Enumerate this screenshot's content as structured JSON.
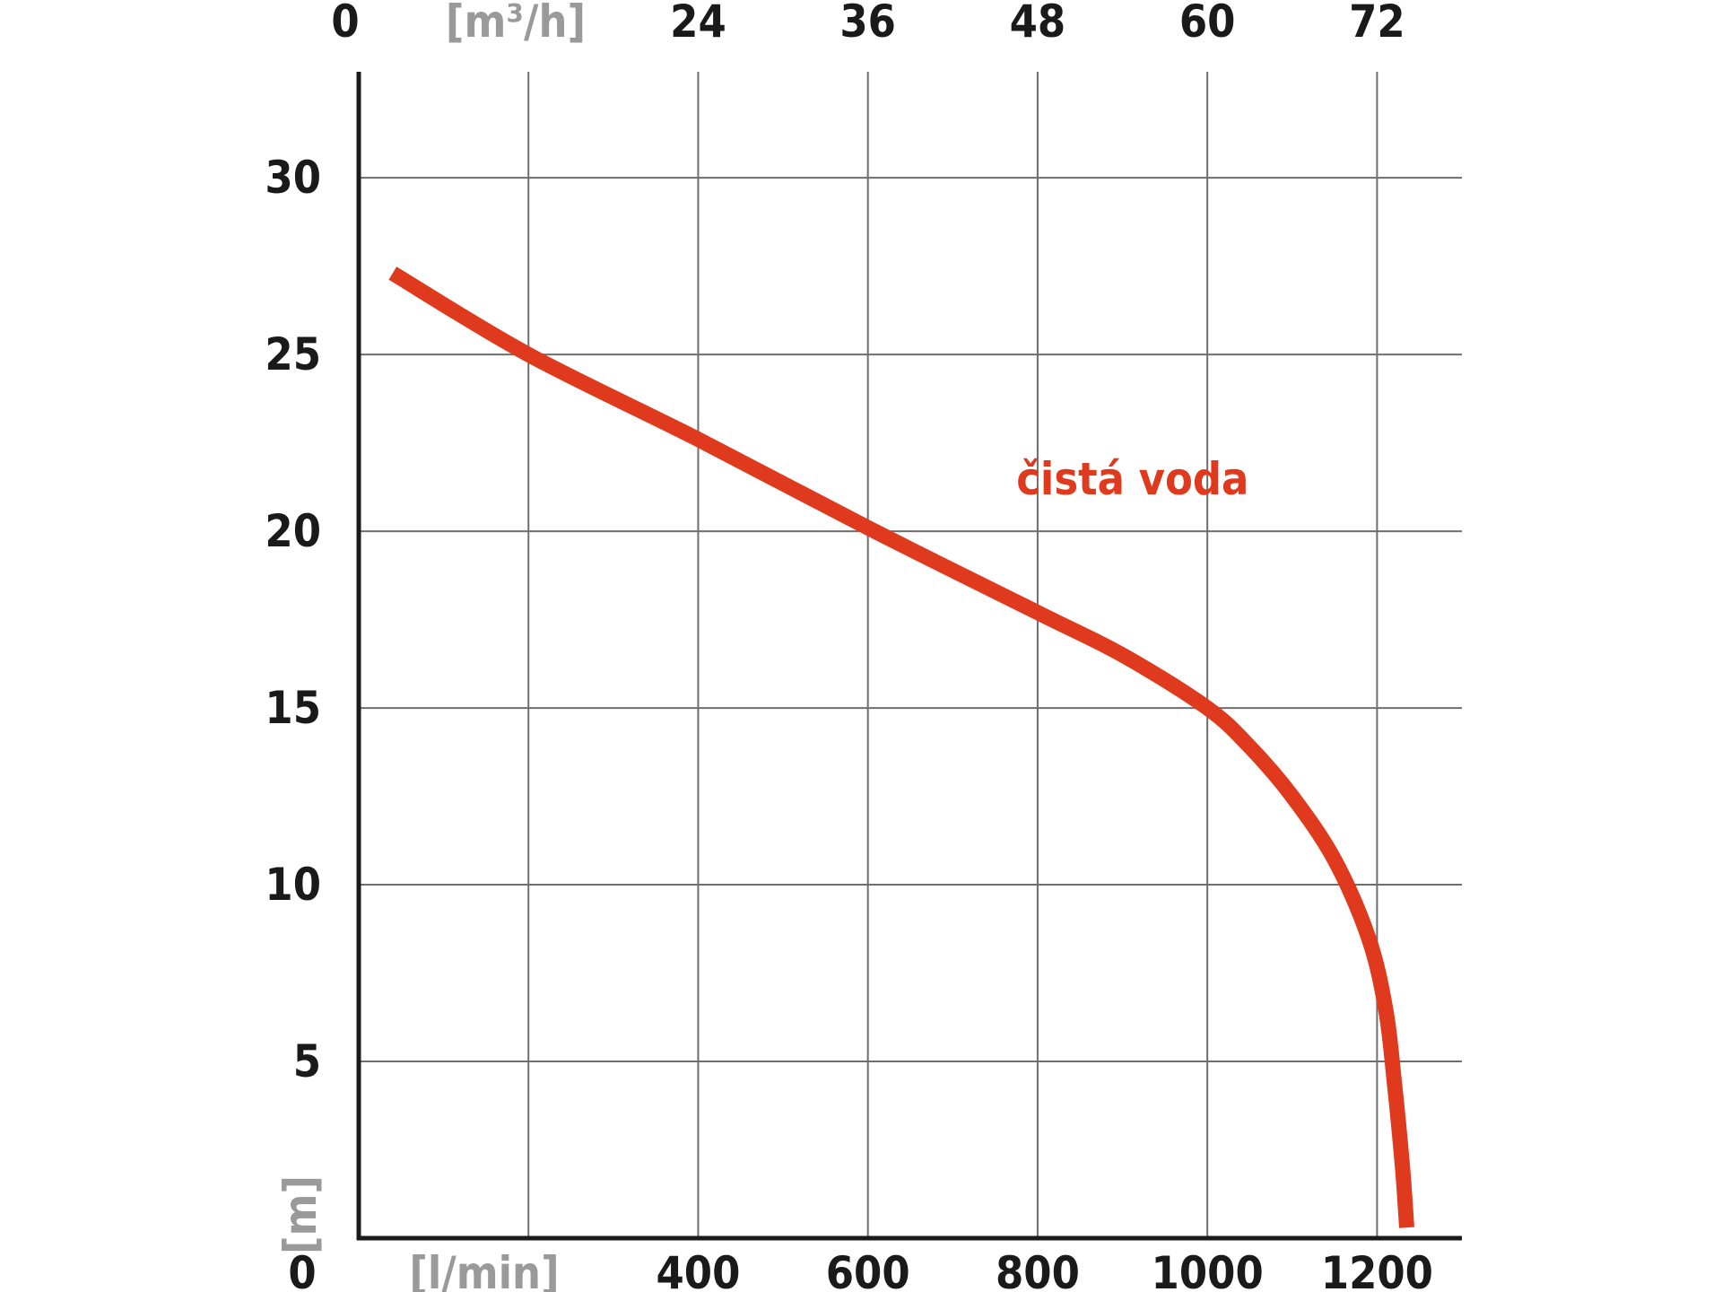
{
  "chart_data": {
    "type": "line",
    "x_axis": {
      "unit_label": "[l/min]",
      "range": [
        0,
        1300
      ],
      "ticks": [
        0,
        200,
        400,
        600,
        800,
        1000,
        1200
      ],
      "tick_labels": [
        "0",
        "",
        "400",
        "600",
        "800",
        "1000",
        "1200"
      ],
      "grid": true
    },
    "x2_axis": {
      "position": "top",
      "unit_label": "[m³/h]",
      "range": [
        0,
        78
      ],
      "ticks": [
        0,
        12,
        24,
        36,
        48,
        60,
        72
      ],
      "tick_labels": [
        "0",
        "",
        "24",
        "36",
        "48",
        "60",
        "72"
      ]
    },
    "y_axis": {
      "unit_label": "[m]",
      "range": [
        0,
        33
      ],
      "ticks": [
        0,
        5,
        10,
        15,
        20,
        25,
        30
      ],
      "tick_labels": [
        "0",
        "5",
        "10",
        "15",
        "20",
        "25",
        "30"
      ],
      "grid": true
    },
    "series": [
      {
        "name": "čistá voda",
        "color": "#e03a1e",
        "x": [
          40,
          200,
          400,
          600,
          800,
          900,
          1000,
          1050,
          1100,
          1150,
          1190,
          1210,
          1220,
          1230,
          1235
        ],
        "y": [
          27.3,
          25.0,
          22.6,
          20.1,
          17.7,
          16.5,
          15.0,
          13.9,
          12.5,
          10.7,
          8.5,
          6.5,
          4.5,
          2.0,
          0.3
        ]
      }
    ],
    "annotations": [
      {
        "text": "čistá voda",
        "x": 775,
        "y": 21.5,
        "color": "#e03a1e"
      }
    ]
  }
}
